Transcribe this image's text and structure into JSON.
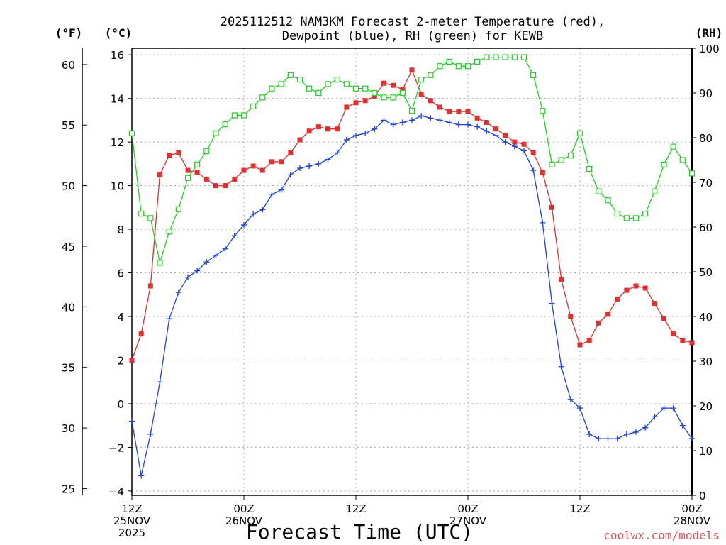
{
  "chart_data": {
    "type": "line",
    "title_line1": "2025112512 NAM3KM Forecast 2-meter Temperature (red),",
    "title_line2": "Dewpoint (blue), RH (green) for KEWB",
    "xlabel": "Forecast Time (UTC)",
    "credit": "coolwx.com/models",
    "left_axis_unit": "(°F)",
    "celsius_axis_unit": "(°C)",
    "right_axis_unit": "(RH)",
    "xlim": [
      0,
      60
    ],
    "ylim_c": [
      -4.2,
      16.3
    ],
    "ylim_rh": [
      0,
      100
    ],
    "fahrenheit_ticks": [
      25,
      30,
      35,
      40,
      45,
      50,
      55,
      60
    ],
    "celsius_ticks": [
      -4,
      -2,
      0,
      2,
      4,
      6,
      8,
      10,
      12,
      14,
      16
    ],
    "celsius_tick_labels": [
      "−4",
      "−2",
      "0",
      "2",
      "4",
      "6",
      "8",
      "10",
      "12",
      "14",
      "16"
    ],
    "rh_ticks": [
      0,
      10,
      20,
      30,
      40,
      50,
      60,
      70,
      80,
      90,
      100
    ],
    "x_ticks": [
      {
        "hour": 0,
        "line1": "12Z",
        "line2": "25NOV",
        "line3": "2025"
      },
      {
        "hour": 12,
        "line1": "00Z",
        "line2": "26NOV",
        "line3": ""
      },
      {
        "hour": 24,
        "line1": "12Z",
        "line2": "",
        "line3": ""
      },
      {
        "hour": 36,
        "line1": "00Z",
        "line2": "27NOV",
        "line3": ""
      },
      {
        "hour": 48,
        "line1": "12Z",
        "line2": "",
        "line3": ""
      },
      {
        "hour": 60,
        "line1": "00Z",
        "line2": "28NOV",
        "line3": ""
      }
    ],
    "grid": true,
    "series": [
      {
        "name": "Temperature",
        "color": "#e03030",
        "marker": "filled-square",
        "x": [
          0,
          1,
          2,
          3,
          4,
          5,
          6,
          7,
          8,
          9,
          10,
          11,
          12,
          13,
          14,
          15,
          16,
          17,
          18,
          19,
          20,
          21,
          22,
          23,
          24,
          25,
          26,
          27,
          28,
          29,
          30,
          31,
          32,
          33,
          34,
          35,
          36,
          37,
          38,
          39,
          40,
          41,
          42,
          43,
          44,
          45,
          46,
          47,
          48,
          49,
          50,
          51,
          52,
          53,
          54,
          55,
          56,
          57,
          58,
          59,
          60
        ],
        "values": [
          2.0,
          3.2,
          5.4,
          10.5,
          11.4,
          11.5,
          10.7,
          10.6,
          10.3,
          10.0,
          10.0,
          10.3,
          10.7,
          10.9,
          10.7,
          11.1,
          11.1,
          11.5,
          12.1,
          12.5,
          12.7,
          12.6,
          12.6,
          13.6,
          13.8,
          13.9,
          14.1,
          14.7,
          14.6,
          14.4,
          15.3,
          14.2,
          13.9,
          13.6,
          13.4,
          13.4,
          13.4,
          13.1,
          12.9,
          12.6,
          12.3,
          12.0,
          11.9,
          11.5,
          10.6,
          9.0,
          5.7,
          4.0,
          2.7,
          2.9,
          3.7,
          4.1,
          4.8,
          5.2,
          5.4,
          5.3,
          4.6,
          3.9,
          3.2,
          2.9,
          2.8
        ]
      },
      {
        "name": "Dewpoint",
        "color": "#2040e0",
        "marker": "plus",
        "x": [
          0,
          1,
          2,
          3,
          4,
          5,
          6,
          7,
          8,
          9,
          10,
          11,
          12,
          13,
          14,
          15,
          16,
          17,
          18,
          19,
          20,
          21,
          22,
          23,
          24,
          25,
          26,
          27,
          28,
          29,
          30,
          31,
          32,
          33,
          34,
          35,
          36,
          37,
          38,
          39,
          40,
          41,
          42,
          43,
          44,
          45,
          46,
          47,
          48,
          49,
          50,
          51,
          52,
          53,
          54,
          55,
          56,
          57,
          58,
          59,
          60
        ],
        "values": [
          -0.8,
          -3.3,
          -1.4,
          1.0,
          3.9,
          5.1,
          5.8,
          6.1,
          6.5,
          6.8,
          7.1,
          7.7,
          8.2,
          8.7,
          8.9,
          9.6,
          9.8,
          10.5,
          10.8,
          10.9,
          11.0,
          11.2,
          11.5,
          12.1,
          12.3,
          12.4,
          12.6,
          13.0,
          12.8,
          12.9,
          13.0,
          13.2,
          13.1,
          13.0,
          12.9,
          12.8,
          12.8,
          12.7,
          12.5,
          12.3,
          12.0,
          11.8,
          11.6,
          10.7,
          8.3,
          4.6,
          1.7,
          0.2,
          -0.2,
          -1.4,
          -1.6,
          -1.6,
          -1.6,
          -1.4,
          -1.3,
          -1.1,
          -0.6,
          -0.2,
          -0.2,
          -1.0,
          -1.6
        ]
      },
      {
        "name": "RH",
        "color": "#20d020",
        "marker": "open-square",
        "axis": "rh",
        "x": [
          0,
          1,
          2,
          3,
          4,
          5,
          6,
          7,
          8,
          9,
          10,
          11,
          12,
          13,
          14,
          15,
          16,
          17,
          18,
          19,
          20,
          21,
          22,
          23,
          24,
          25,
          26,
          27,
          28,
          29,
          30,
          31,
          32,
          33,
          34,
          35,
          36,
          37,
          38,
          39,
          40,
          41,
          42,
          43,
          44,
          45,
          46,
          47,
          48,
          49,
          50,
          51,
          52,
          53,
          54,
          55,
          56,
          57,
          58,
          59,
          60
        ],
        "values": [
          81,
          63,
          62,
          52,
          59,
          64,
          71,
          74,
          77,
          81,
          83,
          85,
          85,
          87,
          89,
          91,
          92,
          94,
          93,
          91,
          90,
          92,
          93,
          92,
          91,
          91,
          90,
          89,
          89,
          90,
          86,
          93,
          94,
          96,
          97,
          96,
          96,
          97,
          98,
          98,
          98,
          98,
          98,
          94,
          86,
          74,
          75,
          76,
          81,
          73,
          68,
          66,
          63,
          62,
          62,
          63,
          68,
          74,
          78,
          75,
          72
        ]
      }
    ]
  }
}
